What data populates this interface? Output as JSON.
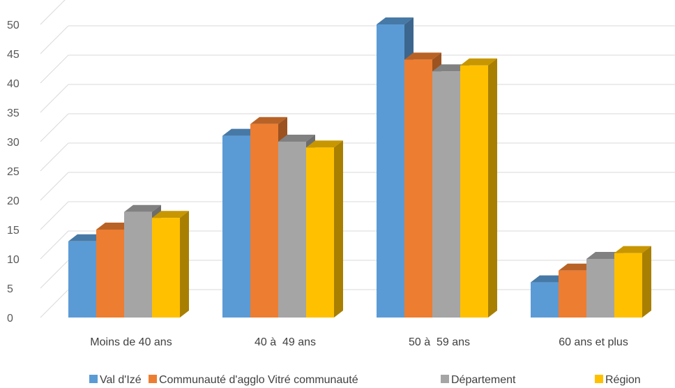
{
  "chart_data": {
    "type": "bar",
    "categories": [
      "Moins de 40 ans",
      "40 à  49 ans",
      "50 à  59 ans",
      "60 ans et plus"
    ],
    "series": [
      {
        "name": "Val d'Izé",
        "values": [
          13,
          31,
          50,
          6
        ],
        "color": "#5B9BD5"
      },
      {
        "name": "Communauté d'agglo Vitré communauté",
        "values": [
          15,
          33,
          44,
          8
        ],
        "color": "#ED7D31"
      },
      {
        "name": "Département",
        "values": [
          18,
          30,
          42,
          10
        ],
        "color": "#A5A5A5"
      },
      {
        "name": "Région",
        "values": [
          17,
          29,
          43,
          11
        ],
        "color": "#FFC000"
      }
    ],
    "ylim": [
      0,
      50
    ],
    "yticks": [
      0,
      5,
      10,
      15,
      20,
      25,
      30,
      35,
      40,
      45,
      50
    ],
    "grid": true,
    "legend": "bottom",
    "style": "3d-clustered-column"
  }
}
